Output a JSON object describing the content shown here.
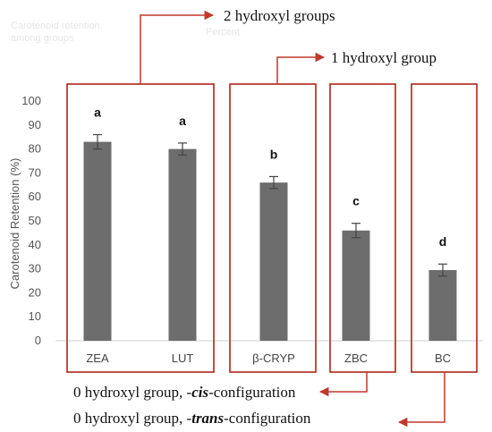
{
  "chart_data": {
    "type": "bar",
    "title": "",
    "xlabel": "",
    "ylabel": "Carotenoid Retention (%)",
    "ylim": [
      0,
      100
    ],
    "yticks": [
      0,
      10,
      20,
      30,
      40,
      50,
      60,
      70,
      80,
      90,
      100
    ],
    "categories": [
      "ZEA",
      "LUT",
      "β-CRYP",
      "ZBC",
      "BC"
    ],
    "values": [
      83,
      80,
      66,
      46,
      29.5
    ],
    "errors": [
      3,
      2.5,
      2.5,
      3,
      2.5
    ],
    "significance": [
      "a",
      "a",
      "b",
      "c",
      "d"
    ],
    "bar_color": "#6d6d6d",
    "box_color": "#b02418",
    "arrow_color": "#c0392b",
    "grid": false,
    "annotations": {
      "two_hydroxyl": "2 hydroxyl groups",
      "one_hydroxyl": "1 hydroxyl group",
      "cis_prefix": "0 hydroxyl group, -",
      "cis_word": "cis",
      "cis_suffix": "-configuration",
      "trans_prefix": "0 hydroxyl group, -",
      "trans_word": "trans",
      "trans_suffix": "-configuration"
    },
    "faint_header": [
      "Carotenoid retention",
      "among groups",
      "Percent"
    ]
  }
}
